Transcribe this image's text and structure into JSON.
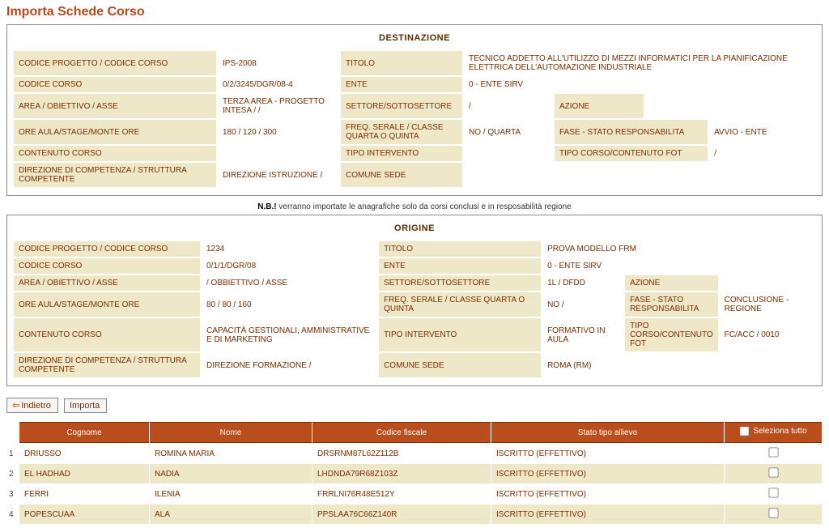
{
  "page_title": "Importa Schede Corso",
  "destinazione": {
    "title": "DESTINAZIONE",
    "labels": {
      "codice_progetto": "CODICE PROGETTO / CODICE CORSO",
      "titolo": "TITOLO",
      "codice_corso": "CODICE CORSO",
      "ente": "ENTE",
      "area": "AREA / OBIETTIVO / ASSE",
      "settore": "SETTORE/SOTTOSETTORE",
      "azione": "AZIONE",
      "ore": "ORE AULA/STAGE/MONTE ORE",
      "freq": "FREQ. SERALE / CLASSE QUARTA O QUINTA",
      "fase": "FASE - STATO RESPONSABILITA",
      "contenuto": "CONTENUTO CORSO",
      "tipo_int": "TIPO INTERVENTO",
      "tipo_corso": "TIPO CORSO/CONTENUTO FOT",
      "direzione": "DIREZIONE DI COMPETENZA / STRUTTURA COMPETENTE",
      "comune": "COMUNE SEDE"
    },
    "values": {
      "codice_progetto": "IPS-2008",
      "titolo": "TECNICO ADDETTO ALL'UTILIZZO DI MEZZI INFORMATICI PER LA PIANIFICAZIONE ELETTRICA DELL'AUTOMAZIONE INDUSTRIALE",
      "codice_corso": "0/2/3245/DGR/08-4",
      "ente": "0 - ENTE SIRV",
      "area": "TERZA AREA - PROGETTO INTESA /  /",
      "settore": "/",
      "azione": "",
      "ore": "180 / 120 / 300",
      "freq": "NO / QUARTA",
      "fase": "AVVIO  -  ENTE",
      "contenuto": "",
      "tipo_int": "",
      "tipo_corso": "/",
      "direzione": "DIREZIONE ISTRUZIONE /",
      "comune": ""
    }
  },
  "note": "verranno importate le anagrafiche solo da corsi conclusi e in resposabilità regione",
  "note_prefix": "N.B.!",
  "origine": {
    "title": "ORIGINE",
    "labels": {
      "codice_progetto": "CODICE PROGETTO / CODICE CORSO",
      "titolo": "TITOLO",
      "codice_corso": "CODICE CORSO",
      "ente": "ENTE",
      "area": "AREA / OBIETTIVO / ASSE",
      "settore": "SETTORE/SOTTOSETTORE",
      "azione": "AZIONE",
      "ore": "ORE AULA/STAGE/MONTE ORE",
      "freq": "FREQ. SERALE / CLASSE QUARTA O QUINTA",
      "fase": "FASE - STATO RESPONSABILITA",
      "contenuto": "CONTENUTO CORSO",
      "tipo_int": "TIPO INTERVENTO",
      "tipo_corso": "TIPO CORSO/CONTENUTO FOT",
      "direzione": "DIREZIONE DI COMPETENZA / STRUTTURA COMPETENTE",
      "comune": "COMUNE SEDE"
    },
    "values": {
      "codice_progetto": "1234",
      "titolo": "PROVA MODELLO FRM",
      "codice_corso": "0/1/1/DGR/08",
      "ente": "0 - ENTE SIRV",
      "area": " / OBBIETTIVO / ASSE",
      "settore": "1L / DFDD",
      "azione": "",
      "ore": "80 / 80 / 160",
      "freq": "NO /",
      "fase": "CONCLUSIONE  -  REGIONE",
      "contenuto": "CAPACITÀ GESTIONALI, AMMINISTRATIVE E DI MARKETING",
      "tipo_int": "FORMATIVO IN AULA",
      "tipo_corso": "FC/ACC / 0010",
      "direzione": "DIREZIONE FORMAZIONE /",
      "comune": "ROMA (RM)"
    }
  },
  "buttons": {
    "indietro": "Indietro",
    "importa": "Importa"
  },
  "list": {
    "headers": {
      "cognome": "Cognome",
      "nome": "Nome",
      "cf": "Codice fiscale",
      "stato": "Stato tipo allievo",
      "seleziona": "Seleziona tutto"
    },
    "rows": [
      {
        "n": "1",
        "cognome": "DRIUSSO",
        "nome": "ROMINA MARIA",
        "cf": "DRSRNM87L62Z112B",
        "stato": "ISCRITTO (EFFETTIVO)"
      },
      {
        "n": "2",
        "cognome": "EL HADHAD",
        "nome": "NADIA",
        "cf": "LHDNDA79R68Z103Z",
        "stato": "ISCRITTO (EFFETTIVO)"
      },
      {
        "n": "3",
        "cognome": "FERRI",
        "nome": "ILENIA",
        "cf": "FRRLNI76R48E512Y",
        "stato": "ISCRITTO (EFFETTIVO)"
      },
      {
        "n": "4",
        "cognome": "POPESCUAA",
        "nome": "ALA",
        "cf": "PPSLAA76C66Z140R",
        "stato": "ISCRITTO (EFFETTIVO)"
      }
    ]
  }
}
